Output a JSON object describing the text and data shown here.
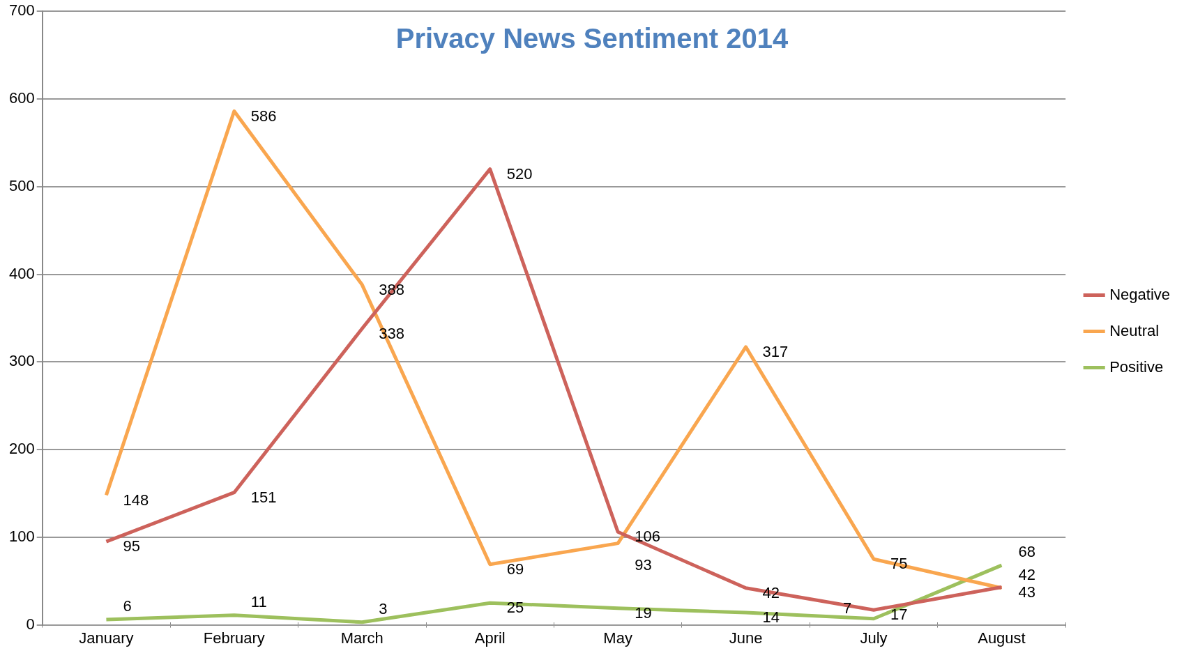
{
  "chart_data": {
    "type": "line",
    "title": "Privacy News Sentiment 2014",
    "categories": [
      "January",
      "February",
      "March",
      "April",
      "May",
      "June",
      "July",
      "August"
    ],
    "series": [
      {
        "name": "Negative",
        "color": "#cd625b",
        "values": [
          95,
          151,
          338,
          520,
          106,
          42,
          17,
          43
        ]
      },
      {
        "name": "Neutral",
        "color": "#f9a64f",
        "values": [
          148,
          586,
          388,
          69,
          93,
          317,
          75,
          42
        ]
      },
      {
        "name": "Positive",
        "color": "#9dc05d",
        "values": [
          6,
          11,
          3,
          25,
          19,
          14,
          7,
          68
        ]
      }
    ],
    "ylim": [
      0,
      700
    ],
    "yticks": [
      0,
      100,
      200,
      300,
      400,
      500,
      600,
      700
    ],
    "grid": "y",
    "legend": "right",
    "marker": "none",
    "data_labels": true
  }
}
